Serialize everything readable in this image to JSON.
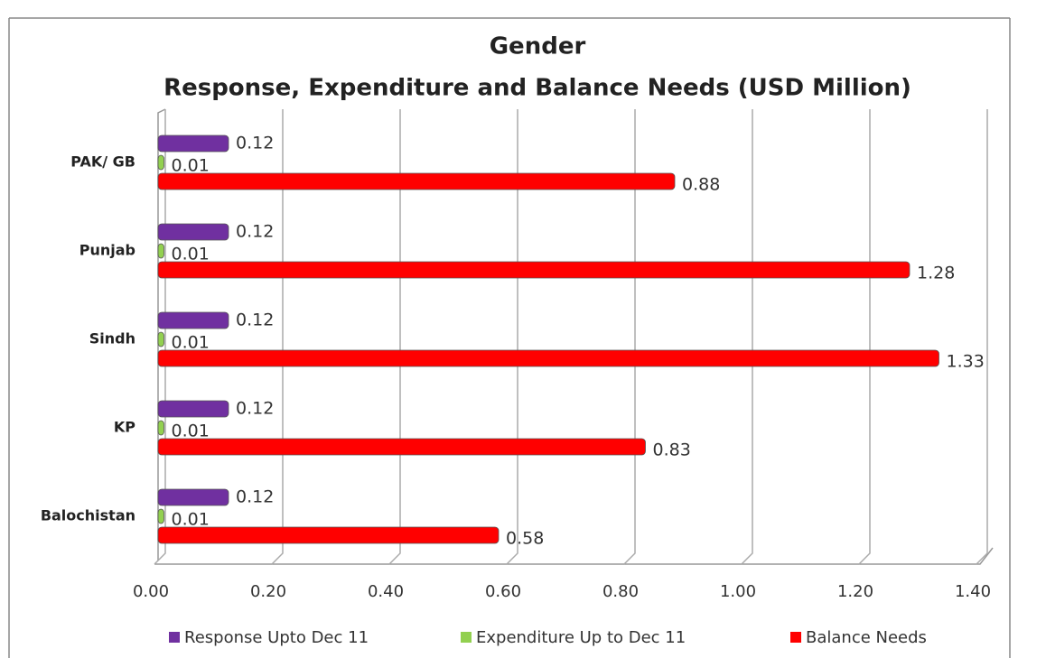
{
  "chart_data": {
    "type": "bar",
    "orientation": "horizontal",
    "title": "Gender",
    "subtitle": "Response, Expenditure and Balance Needs (USD Million)",
    "categories": [
      "PAK/ GB",
      "Punjab",
      "Sindh",
      "KP",
      "Balochistan"
    ],
    "series": [
      {
        "name": "Response Upto Dec 11",
        "color": "#7030a0",
        "values": [
          0.12,
          0.12,
          0.12,
          0.12,
          0.12
        ]
      },
      {
        "name": "Expenditure Up to Dec 11",
        "color": "#92d050",
        "values": [
          0.01,
          0.01,
          0.01,
          0.01,
          0.01
        ]
      },
      {
        "name": "Balance Needs",
        "color": "#ff0000",
        "values": [
          0.88,
          1.28,
          1.33,
          0.83,
          0.58
        ]
      }
    ],
    "xlim": [
      0,
      1.4
    ],
    "xticks": [
      {
        "value": 0,
        "label": "0.00"
      },
      {
        "value": 0.2,
        "label": "0.20"
      },
      {
        "value": 0.4,
        "label": "0.40"
      },
      {
        "value": 0.6,
        "label": "0.60"
      },
      {
        "value": 0.8,
        "label": "0.80"
      },
      {
        "value": 1,
        "label": "1.00"
      },
      {
        "value": 1.2,
        "label": "1.20"
      },
      {
        "value": 1.4,
        "label": "1.40"
      }
    ],
    "grid": true,
    "legend": "bottom"
  }
}
